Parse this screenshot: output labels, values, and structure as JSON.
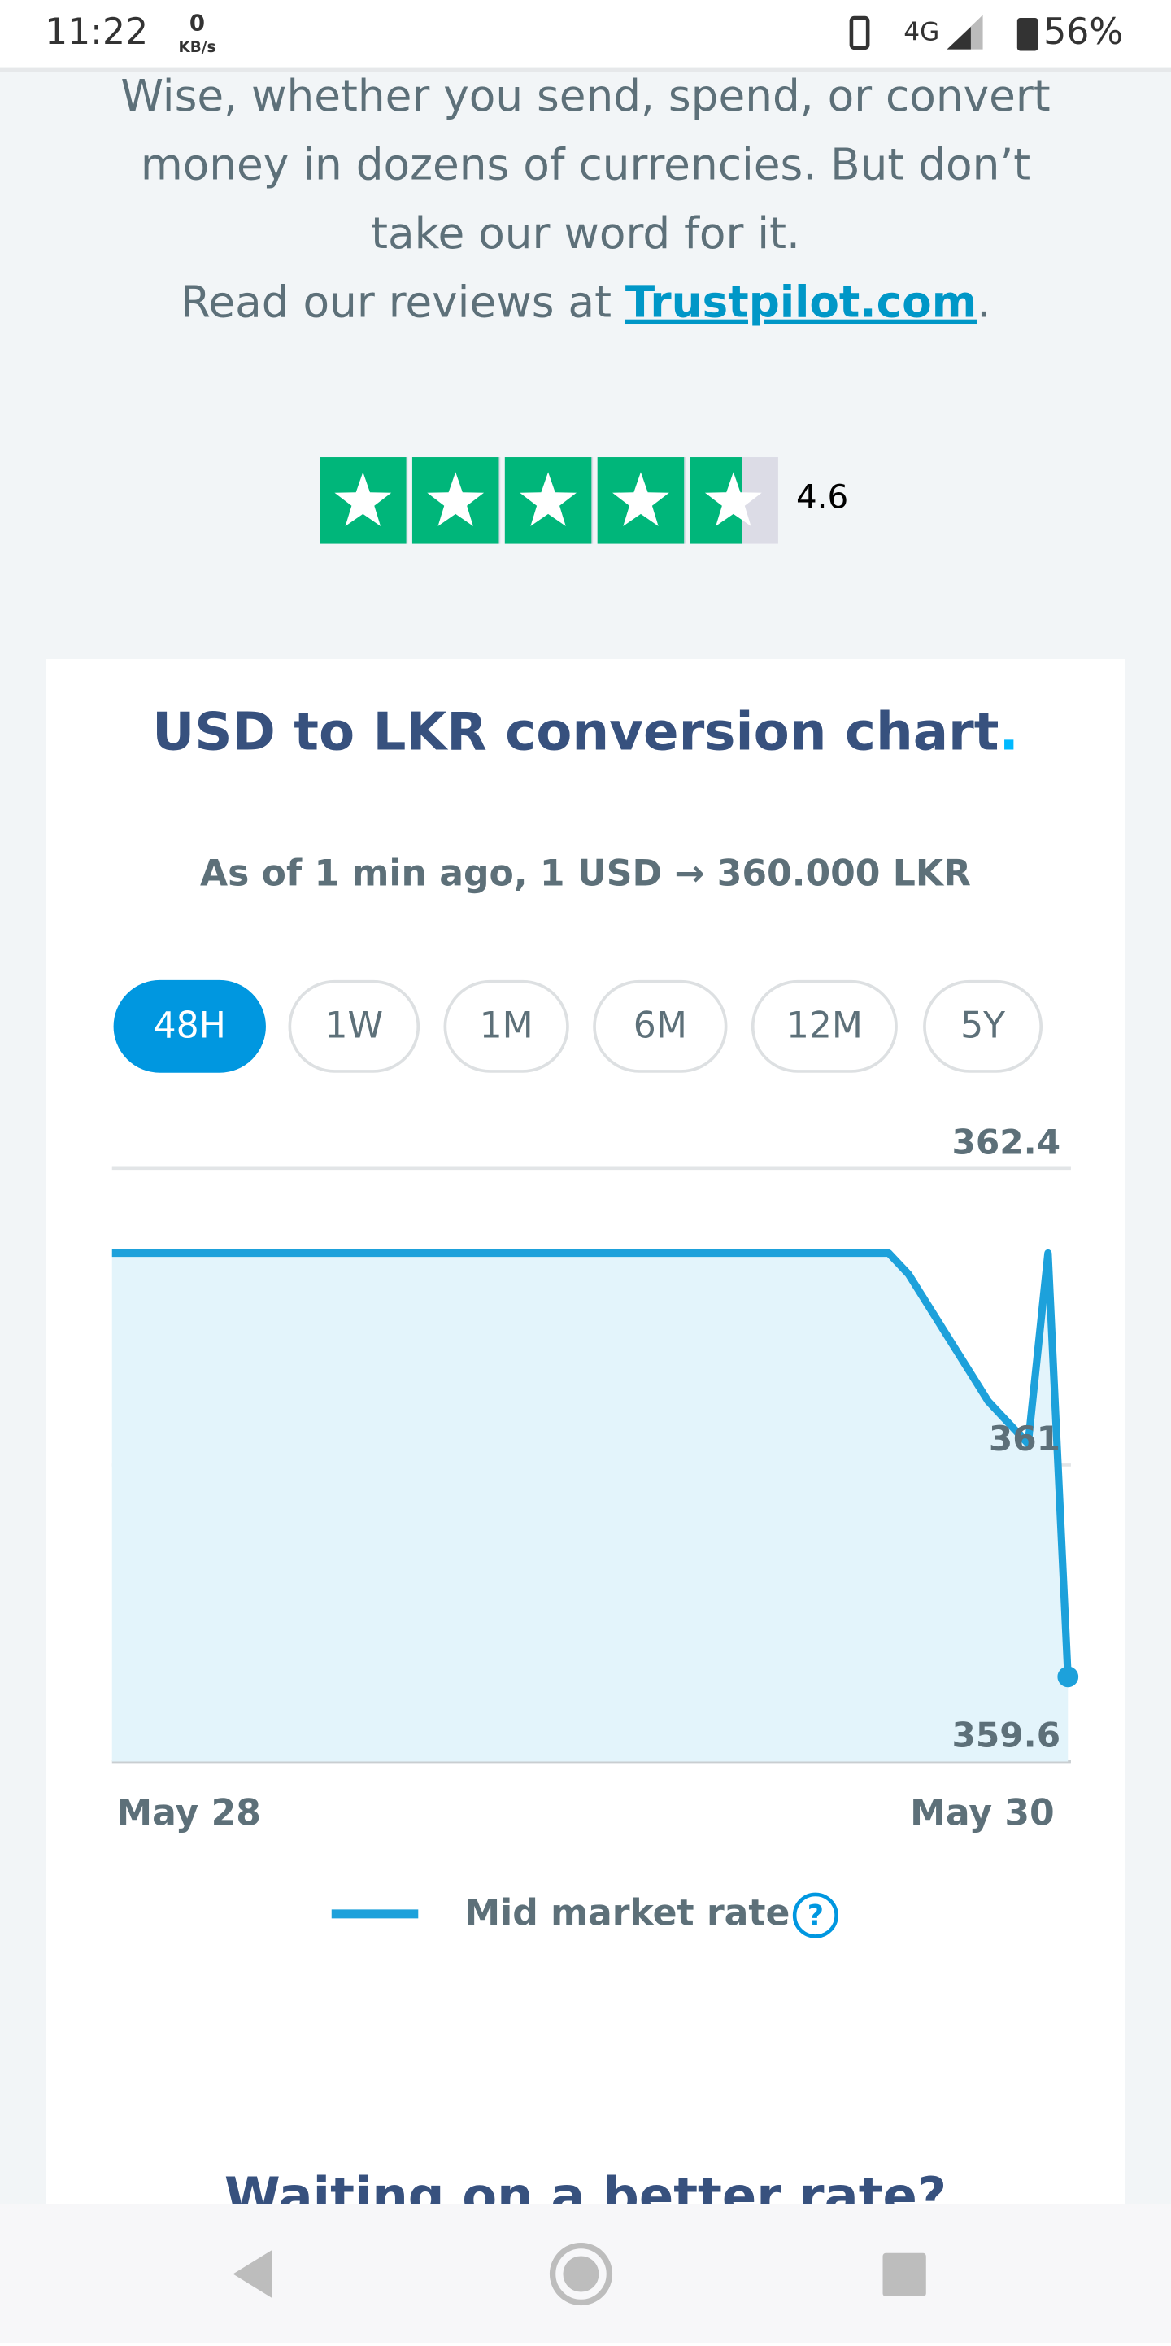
{
  "status_bar": {
    "time": "11:22",
    "speed": "0",
    "speed_unit": "KB/s",
    "network": "4G",
    "battery": "56%"
  },
  "intro": {
    "lines": [
      "Wise, whether you send, spend, or convert",
      "money in dozens of currencies. But don’t",
      "take our word for it."
    ],
    "reviews_prefix": "Read our reviews at ",
    "reviews_link": "Trustpilot.com",
    "reviews_suffix": "."
  },
  "rating": {
    "value": 4.6,
    "label": "4.6"
  },
  "card": {
    "title": "USD to LKR conversion chart",
    "title_dot": ".",
    "subtitle": "As of 1 min ago, 1 USD → 360.000 LKR",
    "periods": [
      "48H",
      "1W",
      "1M",
      "6M",
      "12M",
      "5Y"
    ],
    "active_period": "48H",
    "next_heading": "Waiting on a better rate?",
    "legend_help": "?"
  },
  "chart_data": {
    "type": "line",
    "x_labels": [
      "May 28",
      "May 30"
    ],
    "series": [
      {
        "name": "Mid market rate",
        "color": "#1da1db",
        "values": [
          362,
          362,
          362,
          362,
          362,
          362,
          362,
          362,
          362,
          362,
          362,
          362,
          362,
          362,
          362,
          362,
          362,
          362,
          362,
          362,
          362,
          362,
          362,
          362,
          362,
          362,
          362,
          362,
          362,
          362,
          362,
          362,
          362,
          362,
          362,
          362,
          362,
          362,
          362,
          362,
          361.9,
          361.75,
          361.6,
          361.45,
          361.3,
          361.2,
          361.1,
          362,
          360
        ]
      }
    ],
    "ylim": [
      359.6,
      362.4
    ],
    "yticks": [
      359.6,
      361,
      362.4
    ],
    "grid": true
  }
}
